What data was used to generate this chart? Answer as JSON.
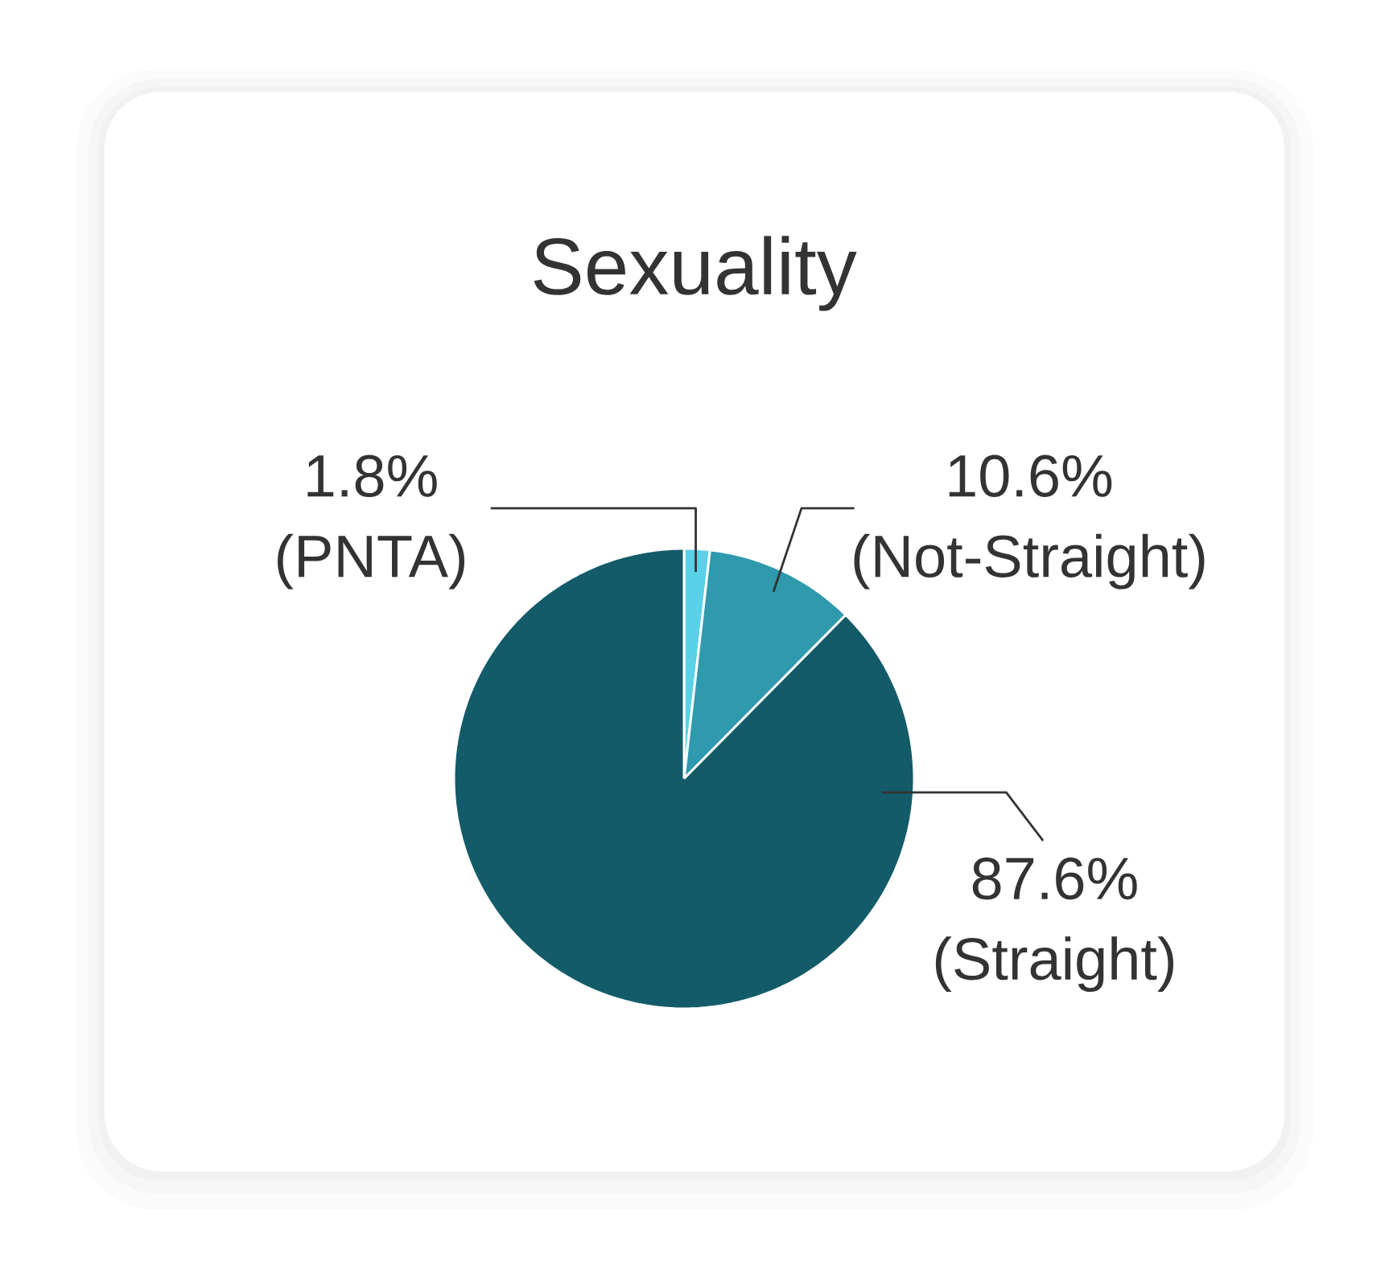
{
  "chart_data": {
    "type": "pie",
    "title": "Sexuality",
    "categories": [
      "(PNTA)",
      "(Not-Straight)",
      "(Straight)"
    ],
    "values": [
      1.8,
      10.6,
      87.6
    ],
    "colors": [
      "#5ad1e6",
      "#2f9aad",
      "#135b69"
    ],
    "value_labels": [
      "1.8%",
      "10.6%",
      "87.6%"
    ]
  }
}
